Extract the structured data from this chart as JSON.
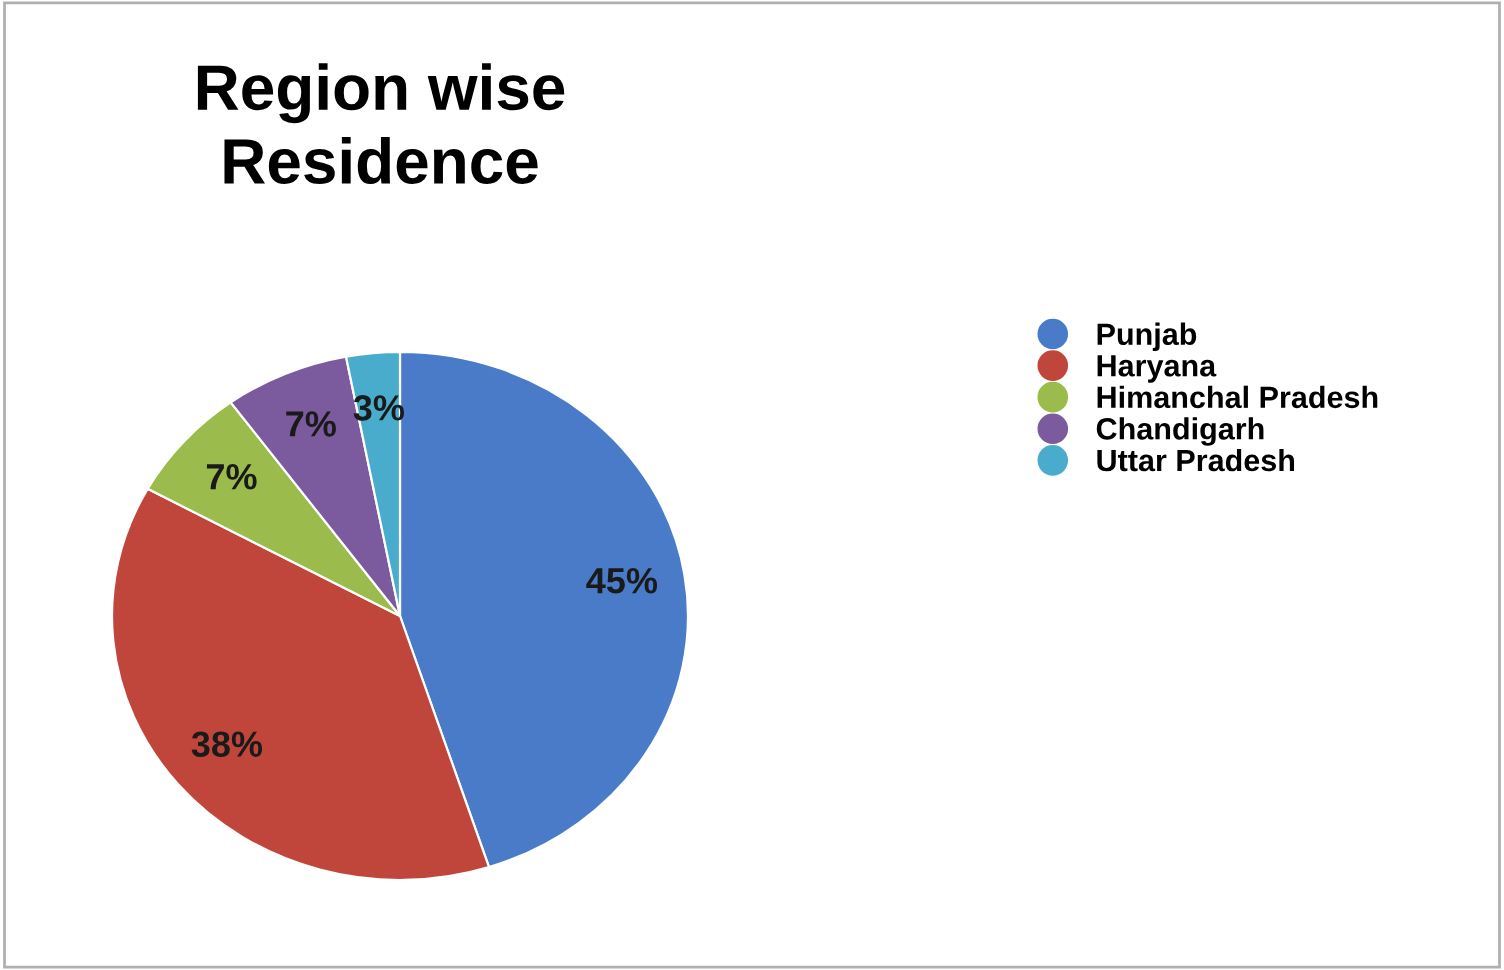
{
  "chart_data": {
    "type": "pie",
    "title": "Region wise\nResidence",
    "categories": [
      "Punjab",
      "Haryana",
      "Himanchal Pradesh",
      "Chandigarh",
      "Uttar Pradesh"
    ],
    "values": [
      45,
      38,
      7,
      7,
      3
    ],
    "colors": [
      "#4a7bc8",
      "#c0463c",
      "#9bbb4c",
      "#7c5a9e",
      "#4aaccc"
    ],
    "value_labels": [
      "45%",
      "38%",
      "7%",
      "7%",
      "3%"
    ],
    "legend": "right"
  }
}
